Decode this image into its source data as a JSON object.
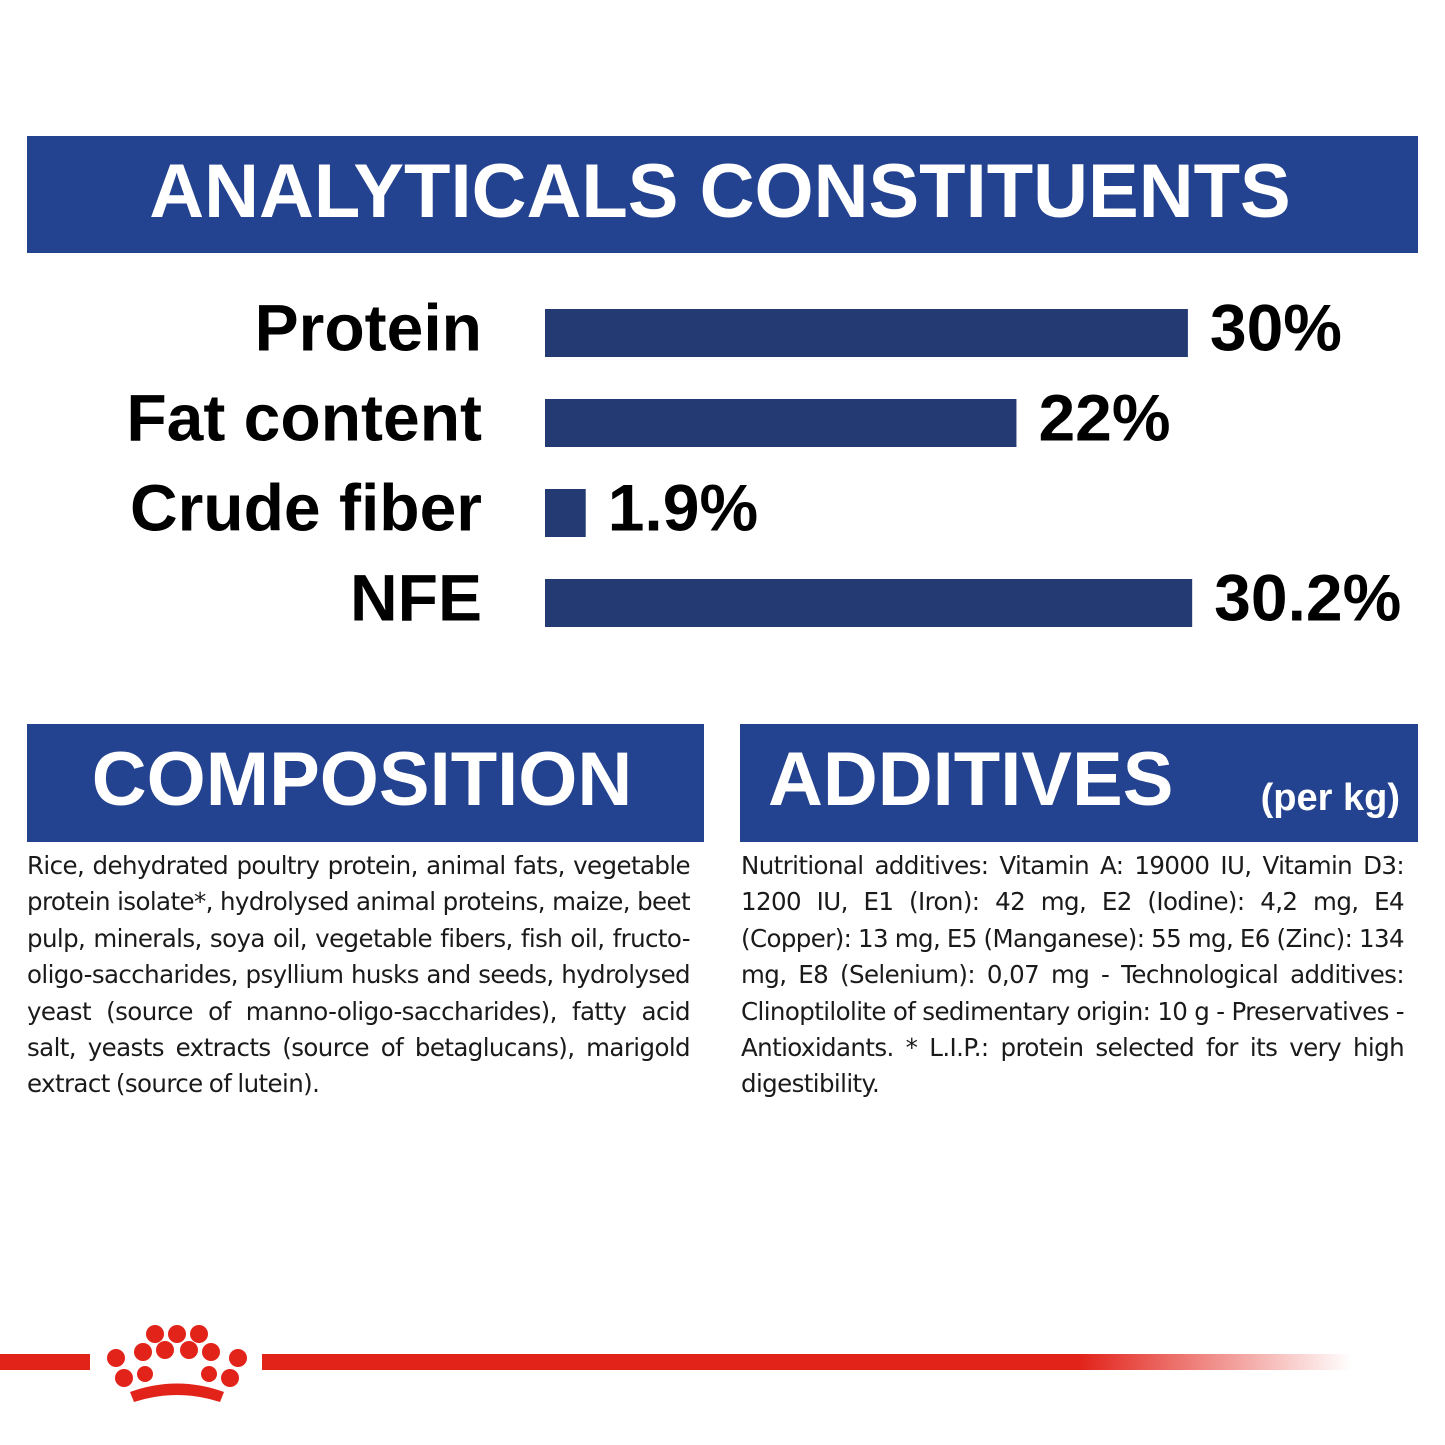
{
  "chart_data": {
    "type": "bar",
    "orientation": "horizontal",
    "title": "ANALYTICALS CONSTITUENTS",
    "categories": [
      "Protein",
      "Fat content",
      "Crude fiber",
      "NFE"
    ],
    "values": [
      30,
      22,
      1.9,
      30.2
    ],
    "value_labels": [
      "30%",
      "22%",
      "1.9%",
      "30.2%"
    ],
    "color": "#233a73"
  },
  "composition": {
    "title": "COMPOSITION",
    "text": "Rice, dehydrated poultry protein, animal fats, vegetable protein isolate*, hydrolysed animal proteins, maize, beet pulp, minerals, soya oil, vegetable fibers, fish oil, fructo- oligo-saccharides, psyllium husks and seeds, hydrolysed yeast (source of manno-oligo-saccharides), fatty acid salt, yeasts extracts (source of betaglucans), marigold extract (source of lutein)."
  },
  "additives": {
    "title": "ADDITIVES",
    "subtitle": "(per kg)",
    "text": "Nutritional additives: Vitamin A: 19000 IU, Vitamin D3: 1200 IU, E1 (Iron): 42 mg, E2 (Iodine): 4,2 mg, E4 (Copper): 13 mg, E5 (Manganese): 55 mg, E6 (Zinc): 134 mg, E8 (Selenium): 0,07 mg - Technological additives: Clinoptilolite of sedimentary origin: 10 g - Preservatives - Antioxidants. * L.I.P.: protein selected for its very high digestibility."
  }
}
